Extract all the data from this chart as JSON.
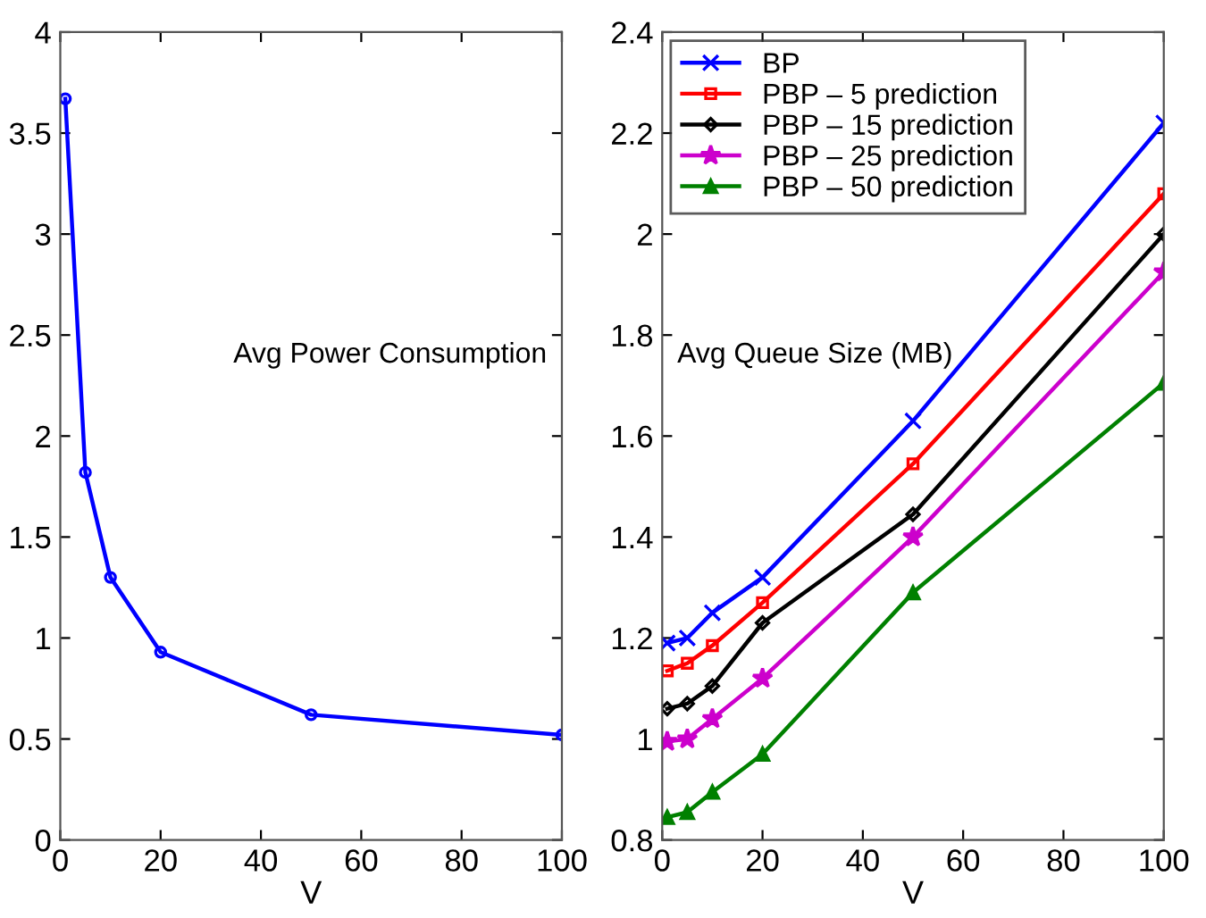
{
  "chart_data": [
    {
      "type": "line",
      "xlabel": "V",
      "annotations": [
        "Avg Power Consumption"
      ],
      "x": [
        1,
        5,
        10,
        20,
        50,
        100
      ],
      "xlim": [
        0,
        100
      ],
      "xticks": [
        0,
        20,
        40,
        60,
        80,
        100
      ],
      "ylim": [
        0,
        4
      ],
      "yticks": [
        0,
        0.5,
        1,
        1.5,
        2,
        2.5,
        3,
        3.5,
        4
      ],
      "grid": false,
      "legend": false,
      "marker": "circle",
      "line_style": "solid",
      "series": [
        {
          "color": "#0000ff",
          "values": [
            3.67,
            1.82,
            1.3,
            0.93,
            0.62,
            0.52
          ]
        }
      ]
    },
    {
      "type": "line",
      "xlabel": "V",
      "annotations": [
        "Avg Queue Size (MB)"
      ],
      "x": [
        1,
        5,
        10,
        20,
        50,
        100
      ],
      "xlim": [
        0,
        100
      ],
      "xticks": [
        0,
        20,
        40,
        60,
        80,
        100
      ],
      "ylim": [
        0.8,
        2.4
      ],
      "yticks": [
        0.8,
        1,
        1.2,
        1.4,
        1.6,
        1.8,
        2,
        2.2,
        2.4
      ],
      "grid": false,
      "legend": "top left",
      "line_style": "solid",
      "series": [
        {
          "name": "BP",
          "color": "#0000ff",
          "marker": "cross",
          "values": [
            1.19,
            1.2,
            1.25,
            1.32,
            1.63,
            2.22
          ]
        },
        {
          "name": "PBP – 5 prediction",
          "color": "#ff0000",
          "marker": "square",
          "values": [
            1.135,
            1.15,
            1.185,
            1.27,
            1.545,
            2.08
          ]
        },
        {
          "name": "PBP – 15 prediction",
          "color": "#000000",
          "marker": "diamond",
          "values": [
            1.06,
            1.07,
            1.105,
            1.23,
            1.445,
            2.0
          ]
        },
        {
          "name": "PBP – 25 prediction",
          "color": "#cc00cc",
          "marker": "star",
          "values": [
            0.995,
            1.0,
            1.04,
            1.12,
            1.4,
            1.925
          ]
        },
        {
          "name": "PBP – 50 prediction",
          "color": "#008000",
          "marker": "triangle",
          "values": [
            0.845,
            0.855,
            0.895,
            0.97,
            1.29,
            1.705
          ]
        }
      ]
    }
  ]
}
